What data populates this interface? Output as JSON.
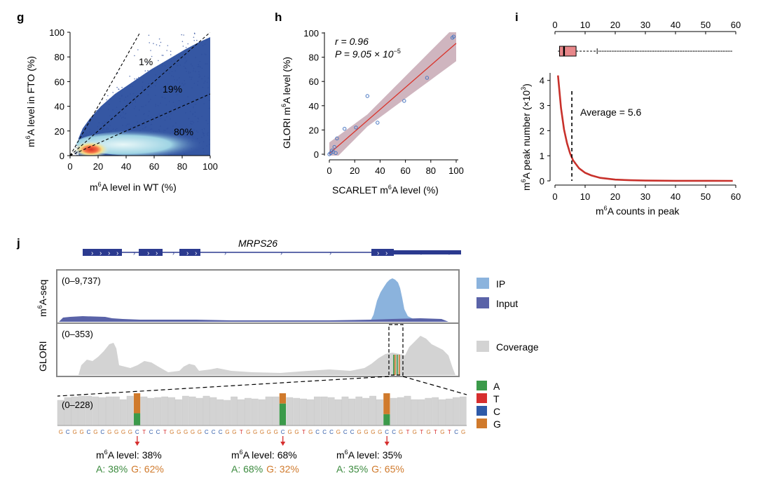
{
  "panels": {
    "g": "g",
    "h": "h",
    "i": "i",
    "j": "j"
  },
  "panel_g": {
    "xlabel_pre": "m",
    "xlabel_sup": "6",
    "xlabel_post": "A level in WT (%)",
    "ylabel_pre": "m",
    "ylabel_sup": "6",
    "ylabel_post": "A level in FTO (%)",
    "xticks": [
      "0",
      "20",
      "40",
      "60",
      "80",
      "100"
    ],
    "yticks": [
      "0",
      "20",
      "40",
      "60",
      "80",
      "100"
    ],
    "annotations": [
      "1%",
      "19%",
      "80%"
    ],
    "colors": {
      "dense": "#d73027",
      "mid": "#f7e08a",
      "light": "#cfeef2",
      "points": "#2f4f9e"
    }
  },
  "panel_h": {
    "xlabel_pre": "SCARLET m",
    "xlabel_sup": "6",
    "xlabel_post": "A level (%)",
    "ylabel_pre": "GLORI m",
    "ylabel_sup": "6",
    "ylabel_post": "A level (%)",
    "xticks": [
      "0",
      "20",
      "40",
      "60",
      "80",
      "100"
    ],
    "yticks": [
      "0",
      "20",
      "40",
      "60",
      "80",
      "100"
    ],
    "stat_r": "r = 0.96",
    "stat_p_pre": "P = 9.05 × 10",
    "stat_p_sup": "−5",
    "colors": {
      "fit": "#d9342b",
      "band": "#c7a8b4",
      "points": "#4a78c2"
    }
  },
  "panel_i": {
    "xlabel_pre": "m",
    "xlabel_sup": "6",
    "xlabel_post": "A counts in peak",
    "ylabel_pre": "m",
    "ylabel_sup": "6",
    "ylabel_post": "A peak number (×10",
    "ylabel_sup2": "3",
    "ylabel_end": ")",
    "xticks": [
      "0",
      "10",
      "20",
      "30",
      "40",
      "50",
      "60"
    ],
    "yticks": [
      "0",
      "1",
      "2",
      "3",
      "4"
    ],
    "average_label": "Average = 5.6",
    "colors": {
      "curve": "#c8312b",
      "box": "#e8878a"
    }
  },
  "panel_j": {
    "gene": "MRPS26",
    "tracks": [
      {
        "label": "m6A-seq",
        "range": "(0–9,737)"
      },
      {
        "label": "GLORI",
        "range": "(0–353)"
      }
    ],
    "track1_label_pre": "m",
    "track1_label_sup": "6",
    "track1_label_post": "A-seq",
    "zoom_range": "(0–228)",
    "legend_top": [
      {
        "label": "IP",
        "color": "#8bb3dd"
      },
      {
        "label": "Input",
        "color": "#5a63a8"
      },
      {
        "label": "Coverage",
        "color": "#d3d3d3"
      }
    ],
    "legend_bases": [
      {
        "label": "A",
        "color": "#3b9a4a"
      },
      {
        "label": "T",
        "color": "#d62e2e"
      },
      {
        "label": "C",
        "color": "#2e5aa8"
      },
      {
        "label": "G",
        "color": "#d07a2c"
      }
    ],
    "sequence": "GCGGCGCGGGGCTCCTGGGGGCCCGGTGGGGGCGGTGCCCGCCGGGGCCGTGTGTGTCG",
    "sites": [
      {
        "level_pre": "m",
        "level_sup": "6",
        "level_post": "A level: 38%",
        "a": "A: 38%",
        "g": "G: 62%",
        "a_frac": 0.38
      },
      {
        "level_pre": "m",
        "level_sup": "6",
        "level_post": "A level: 68%",
        "a": "A: 68%",
        "g": "G: 32%",
        "a_frac": 0.68
      },
      {
        "level_pre": "m",
        "level_sup": "6",
        "level_post": "A level: 35%",
        "a": "A: 35%",
        "g": "G: 65%",
        "a_frac": 0.35
      }
    ]
  },
  "chart_data": [
    {
      "type": "scatter",
      "panel": "g",
      "xlabel": "m6A level in WT (%)",
      "ylabel": "m6A level in FTO (%)",
      "xlim": [
        0,
        100
      ],
      "ylim": [
        0,
        100
      ],
      "guide_line_slopes": [
        2.0,
        1.0,
        0.5
      ],
      "annotations": [
        "1%",
        "19%",
        "80%"
      ],
      "density_peak": [
        15,
        5
      ]
    },
    {
      "type": "scatter",
      "panel": "h",
      "xlabel": "SCARLET m6A level (%)",
      "ylabel": "GLORI m6A level (%)",
      "xlim": [
        0,
        100
      ],
      "ylim": [
        0,
        100
      ],
      "x": [
        0,
        1,
        2,
        3,
        4,
        5,
        6,
        12,
        21,
        30,
        38,
        59,
        77,
        97,
        98
      ],
      "y": [
        0,
        1,
        3,
        2,
        6,
        1,
        13,
        21,
        22,
        48,
        26,
        44,
        63,
        96,
        97
      ],
      "fit": {
        "intercept": 0.5,
        "slope": 0.91
      },
      "r": 0.96,
      "p": "9.05 × 10^−5"
    },
    {
      "type": "line",
      "panel": "i",
      "xlabel": "m6A counts in peak",
      "ylabel": "m6A peak number (×10^3)",
      "xlim": [
        0,
        60
      ],
      "ylim": [
        0,
        4.3
      ],
      "x": [
        1,
        2,
        3,
        4,
        5,
        6,
        8,
        10,
        12,
        15,
        20,
        25,
        30,
        40,
        50,
        59
      ],
      "y": [
        4.2,
        2.9,
        2.05,
        1.5,
        1.1,
        0.82,
        0.5,
        0.32,
        0.22,
        0.12,
        0.05,
        0.025,
        0.012,
        0.004,
        0.002,
        0.001
      ],
      "average": 5.6,
      "boxplot": {
        "q1": 1.5,
        "median": 3,
        "q3": 7,
        "whisker_low": 1,
        "whisker_high": 14,
        "outliers_to": 59
      }
    }
  ]
}
